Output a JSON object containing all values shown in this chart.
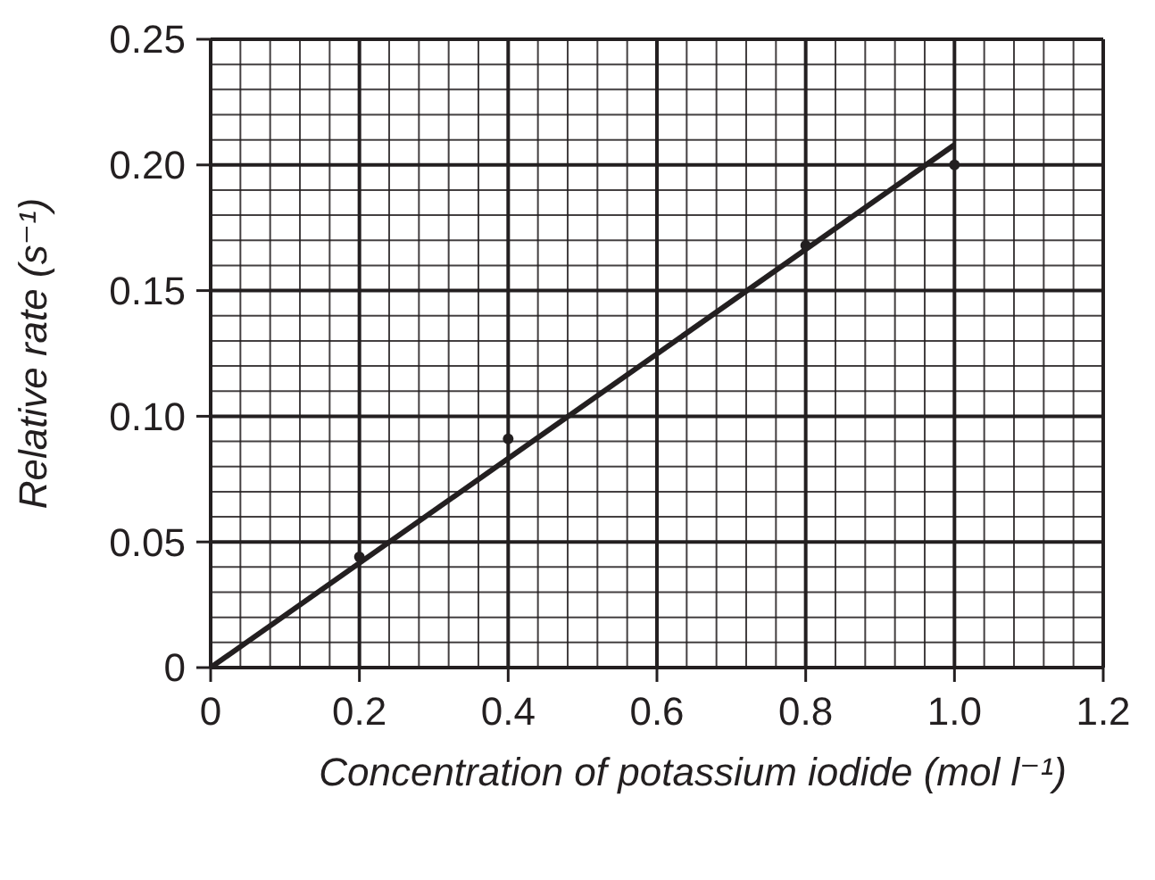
{
  "chart_data": {
    "type": "scatter",
    "xlabel": "Concentration of potassium iodide (mol l⁻¹)",
    "ylabel": "Relative rate (s⁻¹)",
    "xlim": [
      0,
      1.2
    ],
    "xticks": [
      0,
      {
        "value": 0.04,
        "label": null
      },
      {
        "value": 0.08,
        "label": null
      },
      {
        "value": 0.12,
        "label": null
      },
      {
        "value": 0.16,
        "label": null
      },
      0.2,
      {
        "value": 0.24,
        "label": null
      },
      {
        "value": 0.28,
        "label": null
      },
      {
        "value": 0.32,
        "label": null
      },
      {
        "value": 0.36,
        "label": null
      },
      0.4,
      {
        "value": 0.44,
        "label": null
      },
      {
        "value": 0.48,
        "label": null
      },
      {
        "value": 0.52,
        "label": null
      },
      {
        "value": 0.56,
        "label": null
      },
      0.6,
      {
        "value": 0.64,
        "label": null
      },
      {
        "value": 0.68,
        "label": null
      },
      {
        "value": 0.72,
        "label": null
      },
      {
        "value": 0.76,
        "label": null
      },
      0.8,
      {
        "value": 0.84,
        "label": null
      },
      {
        "value": 0.88,
        "label": null
      },
      {
        "value": 0.92,
        "label": null
      },
      {
        "value": 0.96,
        "label": null
      },
      {
        "value": 1.0,
        "label": "1.0"
      },
      {
        "value": 1.04,
        "label": null
      },
      {
        "value": 1.08,
        "label": null
      },
      {
        "value": 1.12,
        "label": null
      },
      {
        "value": 1.16,
        "label": null
      },
      1.2
    ],
    "ylim": [
      0,
      0.25
    ],
    "yticks": [
      0,
      {
        "value": 0.01,
        "label": null
      },
      {
        "value": 0.02,
        "label": null
      },
      {
        "value": 0.03,
        "label": null
      },
      {
        "value": 0.04,
        "label": null
      },
      0.05,
      {
        "value": 0.06,
        "label": null
      },
      {
        "value": 0.07,
        "label": null
      },
      {
        "value": 0.08,
        "label": null
      },
      {
        "value": 0.09,
        "label": null
      },
      {
        "value": 0.1,
        "label": "0.10"
      },
      {
        "value": 0.11,
        "label": null
      },
      {
        "value": 0.12,
        "label": null
      },
      {
        "value": 0.13,
        "label": null
      },
      {
        "value": 0.14,
        "label": null
      },
      0.15,
      {
        "value": 0.16,
        "label": null
      },
      {
        "value": 0.17,
        "label": null
      },
      {
        "value": 0.18,
        "label": null
      },
      {
        "value": 0.19,
        "label": null
      },
      {
        "value": 0.2,
        "label": "0.20"
      },
      {
        "value": 0.21,
        "label": null
      },
      {
        "value": 0.22,
        "label": null
      },
      {
        "value": 0.23,
        "label": null
      },
      {
        "value": 0.24,
        "label": null
      },
      0.25
    ],
    "grid": true,
    "marker": "circle",
    "series": [
      {
        "color": "#231f20",
        "x": [
          0.2,
          0.4,
          0.8,
          1.0
        ],
        "values": [
          0.044,
          0.091,
          0.168,
          0.2
        ]
      },
      {
        "type": "line",
        "color": "#231f20",
        "marker": "none",
        "line_style": "solid",
        "x": [
          0,
          1.0
        ],
        "values": [
          0,
          0.208
        ]
      }
    ]
  }
}
